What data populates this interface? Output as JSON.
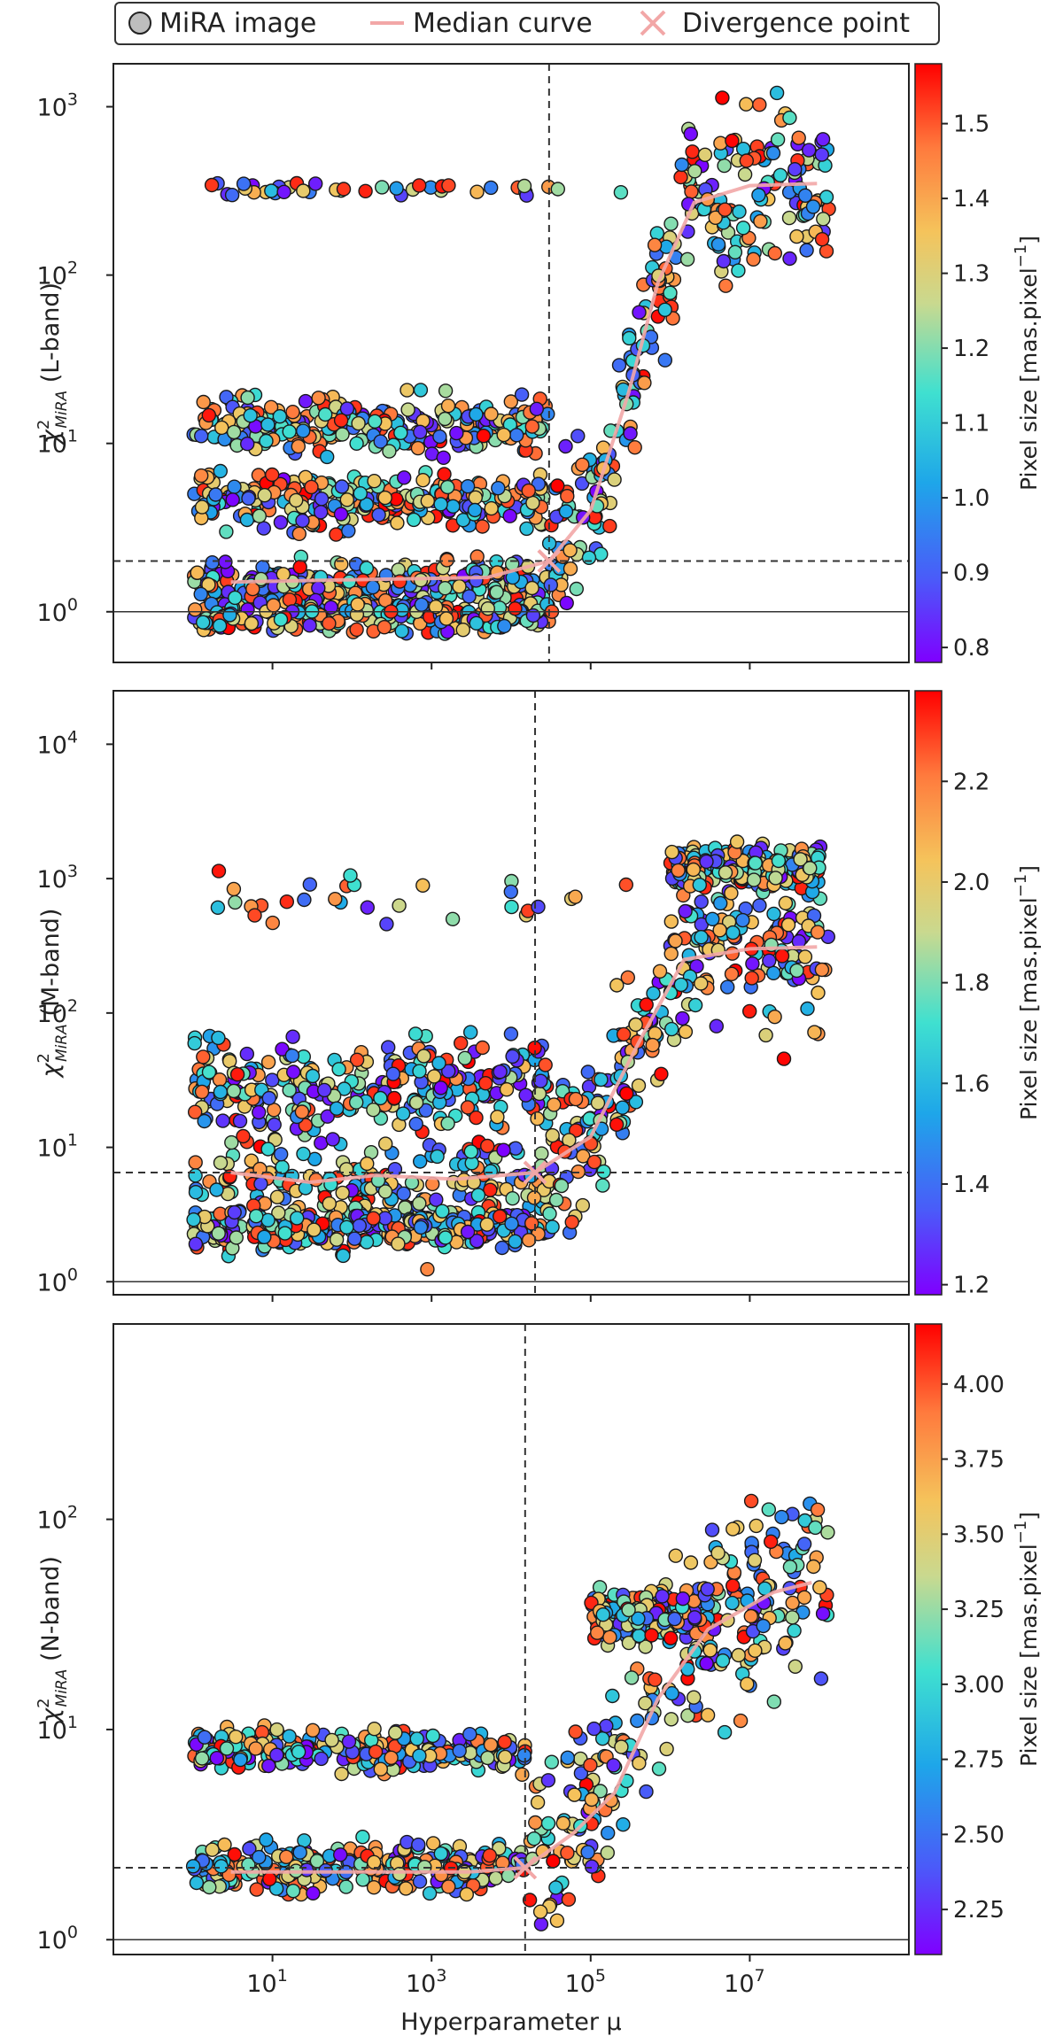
{
  "legend": {
    "items": [
      {
        "label": "MiRA image",
        "icon": "circle-marker-icon"
      },
      {
        "label": "Median curve",
        "icon": "line-icon"
      },
      {
        "label": "Divergence point",
        "icon": "x-marker-icon"
      }
    ]
  },
  "colors": {
    "median_curve": "#f2a7a7",
    "divergence_marker": "#f2a7a7",
    "reference_lines": "#333333",
    "colormap": [
      "#7f00ff",
      "#4a5bf9",
      "#1ea6e9",
      "#3fe0d0",
      "#c9d98f",
      "#f5c35b",
      "#ff7a3d",
      "#ff0000"
    ]
  },
  "chart_data": [
    {
      "type": "scatter",
      "band": "L-band",
      "ylabel": "χ²MiRA  (L-band)",
      "ylabel_main": "χ",
      "ylabel_sup": "2",
      "ylabel_sub": "MiRA",
      "ylabel_suffix": "  (L-band)",
      "xscale": "log",
      "yscale": "log",
      "xlim": [
        0.1,
        1000000000.0
      ],
      "ylim": [
        0.5,
        1800
      ],
      "xticks": [
        10,
        1000,
        100000,
        10000000
      ],
      "xtick_labels": [
        "",
        "",
        "",
        ""
      ],
      "yticks": [
        1,
        10,
        100,
        1000
      ],
      "ytick_labels": [
        {
          "base": "10",
          "exp": "0"
        },
        {
          "base": "10",
          "exp": "1"
        },
        {
          "base": "10",
          "exp": "2"
        },
        {
          "base": "10",
          "exp": "3"
        }
      ],
      "reference_hline": 1,
      "divergence_point": {
        "x": 30000,
        "y": 2.0
      },
      "median_curve": [
        [
          3,
          1.5
        ],
        [
          100,
          1.55
        ],
        [
          5000,
          1.6
        ],
        [
          30000,
          2.0
        ],
        [
          100000,
          4
        ],
        [
          300000,
          20
        ],
        [
          700000,
          90
        ],
        [
          2000000,
          270
        ],
        [
          10000000,
          340
        ],
        [
          70000000,
          350
        ]
      ],
      "clusters": [
        {
          "x": [
            1,
            30000.0
          ],
          "y": 1.45,
          "spread": 0.1
        },
        {
          "x": [
            1,
            30000.0
          ],
          "y": 0.95,
          "spread": 0.07
        },
        {
          "x": [
            1,
            30000.0
          ],
          "y": 4.5,
          "spread": 0.12
        },
        {
          "x": [
            1,
            30000.0
          ],
          "y": 13,
          "spread": 0.12
        },
        {
          "x": [
            1,
            300000.0
          ],
          "y": 320,
          "spread": 0.03,
          "n": 40
        },
        {
          "x": [
            30000.0,
            100000000.0
          ],
          "y": "median_curve",
          "spread": 0.35
        }
      ],
      "colorbar": {
        "label": "Pixel size [mas.pixel",
        "label_exp": "−1",
        "label_close": "]",
        "range": [
          0.78,
          1.58
        ],
        "ticks": [
          0.8,
          0.9,
          1.0,
          1.1,
          1.2,
          1.3,
          1.4,
          1.5
        ],
        "tick_labels": [
          "0.8",
          "0.9",
          "1.0",
          "1.1",
          "1.2",
          "1.3",
          "1.4",
          "1.5"
        ]
      }
    },
    {
      "type": "scatter",
      "band": "M-band",
      "ylabel": "χ²MiRA  (M-band)",
      "ylabel_main": "χ",
      "ylabel_sup": "2",
      "ylabel_sub": "MiRA",
      "ylabel_suffix": "  (M-band)",
      "xscale": "log",
      "yscale": "log",
      "xlim": [
        0.1,
        1000000000.0
      ],
      "ylim": [
        0.8,
        25000
      ],
      "xticks": [
        10,
        1000,
        100000,
        10000000
      ],
      "xtick_labels": [
        "",
        "",
        "",
        ""
      ],
      "yticks": [
        1,
        10,
        100,
        1000,
        10000
      ],
      "ytick_labels": [
        {
          "base": "10",
          "exp": "0"
        },
        {
          "base": "10",
          "exp": "1"
        },
        {
          "base": "10",
          "exp": "2"
        },
        {
          "base": "10",
          "exp": "3"
        },
        {
          "base": "10",
          "exp": "4"
        }
      ],
      "reference_hline": 1,
      "divergence_point": {
        "x": 20000,
        "y": 6.5
      },
      "median_curve": [
        [
          3,
          6.5
        ],
        [
          30,
          5.5
        ],
        [
          200,
          6.2
        ],
        [
          2000,
          5.8
        ],
        [
          20000,
          6.5
        ],
        [
          100000,
          12
        ],
        [
          400000,
          60
        ],
        [
          1500000,
          250
        ],
        [
          10000000,
          300
        ],
        [
          70000000,
          310
        ]
      ],
      "clusters": [
        {
          "x": [
            1,
            30000.0
          ],
          "y": 5,
          "spread": 0.35
        },
        {
          "x": [
            1,
            30000.0
          ],
          "y": 2.5,
          "spread": 0.1
        },
        {
          "x": [
            1,
            30000.0
          ],
          "y": 30,
          "spread": 0.25
        },
        {
          "x": [
            2,
            300000.0
          ],
          "y": 700,
          "spread": 0.15,
          "n": 30
        },
        {
          "x": [
            30000.0,
            100000000.0
          ],
          "y": "median_curve",
          "spread": 0.45
        },
        {
          "x": [
            1000000.0,
            80000000.0
          ],
          "y": 1200,
          "spread": 0.12
        }
      ],
      "colorbar": {
        "label": "Pixel size [mas.pixel",
        "label_exp": "−1",
        "label_close": "]",
        "range": [
          1.18,
          2.38
        ],
        "ticks": [
          1.2,
          1.4,
          1.6,
          1.8,
          2.0,
          2.2
        ],
        "tick_labels": [
          "1.2",
          "1.4",
          "1.6",
          "1.8",
          "2.0",
          "2.2"
        ]
      }
    },
    {
      "type": "scatter",
      "band": "N-band",
      "ylabel": "χ²MiRA  (N-band)",
      "ylabel_main": "χ",
      "ylabel_sup": "2",
      "ylabel_sub": "MiRA",
      "ylabel_suffix": "  (N-band)",
      "xscale": "log",
      "yscale": "log",
      "xlim": [
        0.1,
        1000000000.0
      ],
      "ylim": [
        0.85,
        850
      ],
      "xlabel": "Hyperparameter μ",
      "xticks": [
        10,
        1000,
        100000,
        10000000
      ],
      "xtick_labels": [
        {
          "base": "10",
          "exp": "1"
        },
        {
          "base": "10",
          "exp": "3"
        },
        {
          "base": "10",
          "exp": "5"
        },
        {
          "base": "10",
          "exp": "7"
        }
      ],
      "yticks": [
        1,
        10,
        100
      ],
      "ytick_labels": [
        {
          "base": "10",
          "exp": "0"
        },
        {
          "base": "10",
          "exp": "1"
        },
        {
          "base": "10",
          "exp": "2"
        }
      ],
      "reference_hline": 1,
      "divergence_point": {
        "x": 15000,
        "y": 2.2
      },
      "median_curve": [
        [
          3,
          2.1
        ],
        [
          100,
          2.1
        ],
        [
          3000,
          2.1
        ],
        [
          15000,
          2.2
        ],
        [
          60000,
          3.2
        ],
        [
          200000,
          5
        ],
        [
          700000,
          14
        ],
        [
          3000000,
          30
        ],
        [
          20000000,
          45
        ],
        [
          60000000,
          50
        ]
      ],
      "clusters": [
        {
          "x": [
            1,
            15000.0
          ],
          "y": 2.2,
          "spread": 0.09
        },
        {
          "x": [
            1,
            15000.0
          ],
          "y": 8,
          "spread": 0.07
        },
        {
          "x": [
            15000.0,
            100000000.0
          ],
          "y": "median_curve",
          "spread": 0.35
        },
        {
          "x": [
            100000.0,
            3000000.0
          ],
          "y": 35,
          "spread": 0.08
        }
      ],
      "colorbar": {
        "label": "Pixel size [mas.pixel",
        "label_exp": "−1",
        "label_close": "]",
        "range": [
          2.1,
          4.2
        ],
        "ticks": [
          2.25,
          2.5,
          2.75,
          3.0,
          3.25,
          3.5,
          3.75,
          4.0
        ],
        "tick_labels": [
          "2.25",
          "2.50",
          "2.75",
          "3.00",
          "3.25",
          "3.50",
          "3.75",
          "4.00"
        ]
      }
    }
  ]
}
